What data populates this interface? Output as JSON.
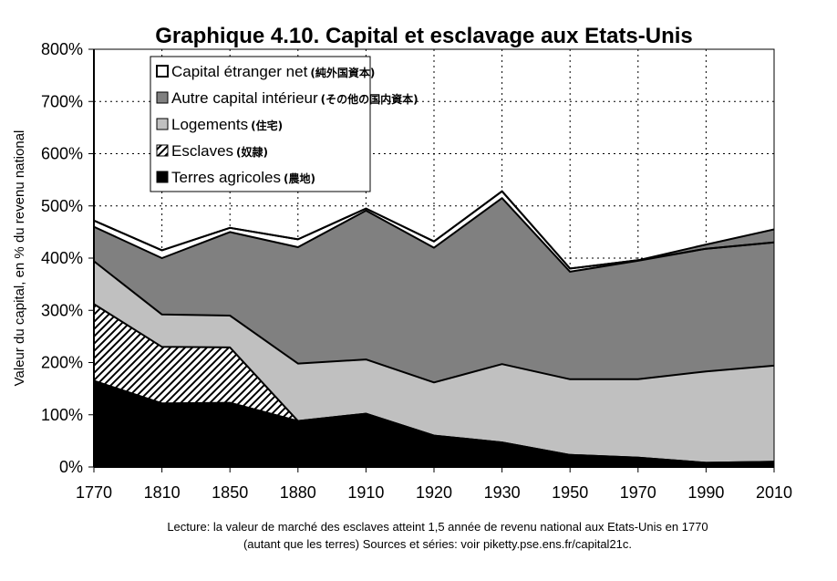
{
  "chart_data": {
    "type": "area",
    "title": "Graphique 4.10. Capital et esclavage aux Etats-Unis",
    "ylabel": "Valeur du capital, en % du revenu national",
    "xlabel": "",
    "ylim": [
      0,
      800
    ],
    "yticks": [
      "0%",
      "100%",
      "200%",
      "300%",
      "400%",
      "500%",
      "600%",
      "700%",
      "800%"
    ],
    "categories": [
      "1770",
      "1810",
      "1850",
      "1880",
      "1910",
      "1920",
      "1930",
      "1950",
      "1970",
      "1990",
      "2010"
    ],
    "grid": true,
    "legend_position": "top-left",
    "stacked": true,
    "series": [
      {
        "name": "Terres agricoles",
        "name_jp": "(農地)",
        "fill": "#000000",
        "values": [
          165,
          122,
          123,
          88,
          102,
          60,
          47,
          23,
          18,
          8,
          10
        ]
      },
      {
        "name": "Esclaves",
        "name_jp": "(奴隷)",
        "fill": "hatch",
        "values": [
          147,
          108,
          106,
          0,
          0,
          0,
          0,
          0,
          0,
          0,
          0
        ]
      },
      {
        "name": "Logements",
        "name_jp": "(住宅)",
        "fill": "#c0c0c0",
        "values": [
          82,
          62,
          61,
          110,
          104,
          102,
          150,
          145,
          150,
          175,
          184
        ]
      },
      {
        "name": "Autre capital intérieur",
        "name_jp": "(その他の国内資本)",
        "fill": "#808080",
        "values": [
          66,
          108,
          160,
          223,
          285,
          258,
          318,
          206,
          227,
          235,
          236
        ]
      },
      {
        "name": "Capital étranger net",
        "name_jp": "(純外国資本)",
        "fill": "#ffffff",
        "values": [
          12,
          15,
          8,
          15,
          4,
          12,
          13,
          6,
          1,
          0,
          0
        ]
      },
      {
        "name": "Capital étranger net (négatif)",
        "fill": "#808080",
        "values": [
          0,
          0,
          0,
          0,
          0,
          0,
          0,
          0,
          0,
          8,
          25
        ]
      }
    ],
    "legend": [
      {
        "label": "Capital étranger net",
        "jp": "(純外国資本)",
        "swatch": "white"
      },
      {
        "label": "Autre capital intérieur",
        "jp": "(その他の国内資本)",
        "swatch": "dark"
      },
      {
        "label": "Logements",
        "jp": "(住宅)",
        "swatch": "light"
      },
      {
        "label": "Esclaves",
        "jp": "(奴隷)",
        "swatch": "hatch"
      },
      {
        "label": "Terres agricoles",
        "jp": "(農地)",
        "swatch": "black"
      }
    ],
    "note_line1": "Lecture: la valeur de marché des esclaves atteint 1,5 année de revenu national aux Etats-Unis en 1770",
    "note_line2": "(autant que les terres)  Sources et séries: voir piketty.pse.ens.fr/capital21c."
  }
}
